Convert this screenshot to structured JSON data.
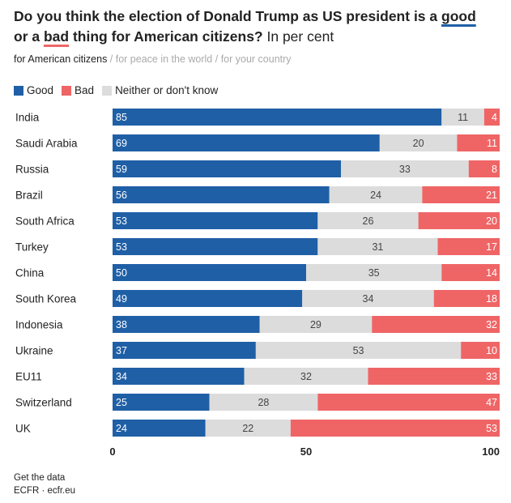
{
  "title": {
    "part1": "Do you think the election of Donald Trump as US president is a ",
    "good": "good",
    "part2": "or a ",
    "bad": "bad",
    "part3": " thing for American citizens?",
    "unit": " In per cent"
  },
  "tabs": {
    "active": "for American citizens",
    "sep1": " / ",
    "world": "for peace in the world",
    "sep2": " / ",
    "country": "for your country"
  },
  "legend": [
    {
      "label": "Good",
      "color": "#1f5fa6"
    },
    {
      "label": "Bad",
      "color": "#ef6566"
    },
    {
      "label": "Neither or don't know",
      "color": "#dcdcdc"
    }
  ],
  "chart_data": {
    "type": "bar",
    "orientation": "horizontal",
    "stacked": true,
    "categories": [
      "India",
      "Saudi Arabia",
      "Russia",
      "Brazil",
      "South Africa",
      "Turkey",
      "China",
      "South Korea",
      "Indonesia",
      "Ukraine",
      "EU11",
      "Switzerland",
      "UK"
    ],
    "series": [
      {
        "name": "Good",
        "color": "#1f5fa6",
        "values": [
          85,
          69,
          59,
          56,
          53,
          53,
          50,
          49,
          38,
          37,
          34,
          25,
          24
        ]
      },
      {
        "name": "Neither or don't know",
        "color": "#dcdcdc",
        "values": [
          11,
          20,
          33,
          24,
          26,
          31,
          35,
          34,
          29,
          53,
          32,
          28,
          22
        ]
      },
      {
        "name": "Bad",
        "color": "#ef6566",
        "values": [
          4,
          11,
          8,
          21,
          20,
          17,
          14,
          18,
          32,
          10,
          33,
          47,
          53
        ]
      }
    ],
    "xlim": [
      0,
      100
    ],
    "xticks": [
      0,
      50,
      100
    ]
  },
  "footer": {
    "line1": "Get the data",
    "line2": "ECFR · ecfr.eu"
  }
}
